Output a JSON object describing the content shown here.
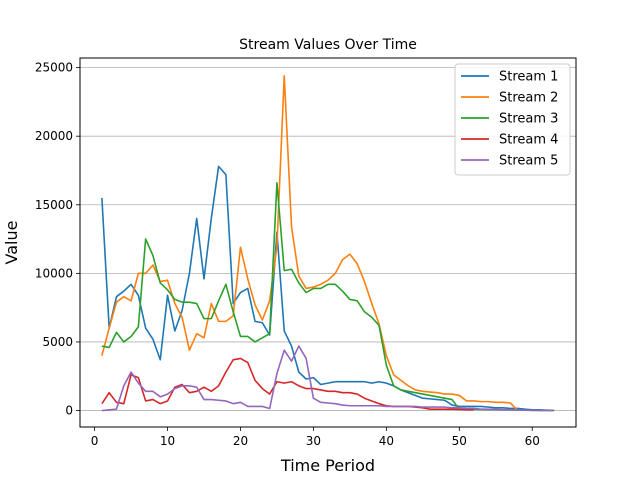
{
  "chart_data": {
    "type": "line",
    "title": "Stream Values Over Time",
    "xlabel": "Time Period",
    "ylabel": "Value",
    "xlim": [
      -2,
      66
    ],
    "ylim": [
      -1200,
      25700
    ],
    "xticks": [
      0,
      10,
      20,
      30,
      40,
      50,
      60
    ],
    "yticks": [
      0,
      5000,
      10000,
      15000,
      20000,
      25000
    ],
    "grid": "horizontal",
    "legend_position": "top-right",
    "series": [
      {
        "name": "Stream 1",
        "color": "#1f77b4",
        "points": [
          [
            1,
            15500
          ],
          [
            2,
            6000
          ],
          [
            3,
            8300
          ],
          [
            4,
            8700
          ],
          [
            5,
            9200
          ],
          [
            6,
            8400
          ],
          [
            7,
            6000
          ],
          [
            8,
            5200
          ],
          [
            9,
            3700
          ],
          [
            10,
            8400
          ],
          [
            11,
            5800
          ],
          [
            12,
            7300
          ],
          [
            13,
            10000
          ],
          [
            14,
            14000
          ],
          [
            15,
            9600
          ],
          [
            16,
            14000
          ],
          [
            17,
            17800
          ],
          [
            18,
            17200
          ],
          [
            19,
            7800
          ],
          [
            20,
            8600
          ],
          [
            21,
            8900
          ],
          [
            22,
            6500
          ],
          [
            23,
            6400
          ],
          [
            24,
            5500
          ],
          [
            25,
            13000
          ],
          [
            26,
            5800
          ],
          [
            27,
            4700
          ],
          [
            28,
            2800
          ],
          [
            29,
            2300
          ],
          [
            30,
            2400
          ],
          [
            31,
            1900
          ],
          [
            32,
            2000
          ],
          [
            33,
            2100
          ],
          [
            34,
            2100
          ],
          [
            35,
            2100
          ],
          [
            36,
            2100
          ],
          [
            37,
            2100
          ],
          [
            38,
            2000
          ],
          [
            39,
            2100
          ],
          [
            40,
            2000
          ],
          [
            41,
            1800
          ],
          [
            42,
            1500
          ],
          [
            43,
            1300
          ],
          [
            44,
            1100
          ],
          [
            45,
            900
          ],
          [
            46,
            850
          ],
          [
            47,
            800
          ],
          [
            48,
            750
          ],
          [
            49,
            400
          ],
          [
            50,
            300
          ],
          [
            51,
            300
          ],
          [
            52,
            300
          ],
          [
            53,
            300
          ],
          [
            54,
            250
          ],
          [
            55,
            200
          ],
          [
            56,
            200
          ],
          [
            57,
            150
          ],
          [
            58,
            150
          ],
          [
            59,
            100
          ],
          [
            60,
            50
          ],
          [
            61,
            50
          ],
          [
            62,
            30
          ],
          [
            63,
            20
          ]
        ]
      },
      {
        "name": "Stream 2",
        "color": "#ff7f0e",
        "points": [
          [
            1,
            4000
          ],
          [
            2,
            6000
          ],
          [
            3,
            7900
          ],
          [
            4,
            8300
          ],
          [
            5,
            8000
          ],
          [
            6,
            10000
          ],
          [
            7,
            10000
          ],
          [
            8,
            10600
          ],
          [
            9,
            9400
          ],
          [
            10,
            9500
          ],
          [
            11,
            7800
          ],
          [
            12,
            6800
          ],
          [
            13,
            4400
          ],
          [
            14,
            5600
          ],
          [
            15,
            5300
          ],
          [
            16,
            7800
          ],
          [
            17,
            6500
          ],
          [
            18,
            6500
          ],
          [
            19,
            6900
          ],
          [
            20,
            11900
          ],
          [
            21,
            9600
          ],
          [
            22,
            7700
          ],
          [
            23,
            6600
          ],
          [
            24,
            8000
          ],
          [
            25,
            12000
          ],
          [
            26,
            24400
          ],
          [
            27,
            13400
          ],
          [
            28,
            9800
          ],
          [
            29,
            8900
          ],
          [
            30,
            9000
          ],
          [
            31,
            9200
          ],
          [
            32,
            9500
          ],
          [
            33,
            10000
          ],
          [
            34,
            11000
          ],
          [
            35,
            11400
          ],
          [
            36,
            10700
          ],
          [
            37,
            9400
          ],
          [
            38,
            7800
          ],
          [
            39,
            6300
          ],
          [
            40,
            4000
          ],
          [
            41,
            2600
          ],
          [
            42,
            2200
          ],
          [
            43,
            1800
          ],
          [
            44,
            1500
          ],
          [
            45,
            1400
          ],
          [
            46,
            1350
          ],
          [
            47,
            1300
          ],
          [
            48,
            1200
          ],
          [
            49,
            1200
          ],
          [
            50,
            1100
          ],
          [
            51,
            700
          ],
          [
            52,
            700
          ],
          [
            53,
            650
          ],
          [
            54,
            650
          ],
          [
            55,
            600
          ],
          [
            56,
            600
          ],
          [
            57,
            550
          ],
          [
            58,
            0
          ]
        ]
      },
      {
        "name": "Stream 3",
        "color": "#2ca02c",
        "points": [
          [
            1,
            4700
          ],
          [
            2,
            4600
          ],
          [
            3,
            5700
          ],
          [
            4,
            5000
          ],
          [
            5,
            5400
          ],
          [
            6,
            6100
          ],
          [
            7,
            12500
          ],
          [
            8,
            11300
          ],
          [
            9,
            9300
          ],
          [
            10,
            8800
          ],
          [
            11,
            8100
          ],
          [
            12,
            7900
          ],
          [
            13,
            7900
          ],
          [
            14,
            7800
          ],
          [
            15,
            6700
          ],
          [
            16,
            6700
          ],
          [
            17,
            8000
          ],
          [
            18,
            9200
          ],
          [
            19,
            7200
          ],
          [
            20,
            5400
          ],
          [
            21,
            5400
          ],
          [
            22,
            5000
          ],
          [
            23,
            5300
          ],
          [
            24,
            5600
          ],
          [
            25,
            16600
          ],
          [
            26,
            10200
          ],
          [
            27,
            10300
          ],
          [
            28,
            9300
          ],
          [
            29,
            8600
          ],
          [
            30,
            8900
          ],
          [
            31,
            8900
          ],
          [
            32,
            9200
          ],
          [
            33,
            9200
          ],
          [
            34,
            8700
          ],
          [
            35,
            8100
          ],
          [
            36,
            8000
          ],
          [
            37,
            7200
          ],
          [
            38,
            6800
          ],
          [
            39,
            6200
          ],
          [
            40,
            3300
          ],
          [
            41,
            1800
          ],
          [
            42,
            1500
          ],
          [
            43,
            1400
          ],
          [
            44,
            1300
          ],
          [
            45,
            1200
          ],
          [
            46,
            1100
          ],
          [
            47,
            1000
          ],
          [
            48,
            900
          ],
          [
            49,
            800
          ],
          [
            50,
            100
          ],
          [
            51,
            100
          ],
          [
            52,
            100
          ],
          [
            53,
            80
          ],
          [
            54,
            70
          ],
          [
            55,
            60
          ],
          [
            56,
            50
          ],
          [
            57,
            40
          ],
          [
            58,
            30
          ],
          [
            59,
            20
          ],
          [
            60,
            10
          ],
          [
            61,
            10
          ],
          [
            62,
            10
          ],
          [
            63,
            10
          ]
        ]
      },
      {
        "name": "Stream 4",
        "color": "#d62728",
        "points": [
          [
            1,
            500
          ],
          [
            2,
            1300
          ],
          [
            3,
            600
          ],
          [
            4,
            500
          ],
          [
            5,
            2600
          ],
          [
            6,
            2400
          ],
          [
            7,
            700
          ],
          [
            8,
            800
          ],
          [
            9,
            500
          ],
          [
            10,
            700
          ],
          [
            11,
            1700
          ],
          [
            12,
            1900
          ],
          [
            13,
            1300
          ],
          [
            14,
            1400
          ],
          [
            15,
            1700
          ],
          [
            16,
            1400
          ],
          [
            17,
            1800
          ],
          [
            18,
            2800
          ],
          [
            19,
            3700
          ],
          [
            20,
            3800
          ],
          [
            21,
            3500
          ],
          [
            22,
            2200
          ],
          [
            23,
            1600
          ],
          [
            24,
            1200
          ],
          [
            25,
            2100
          ],
          [
            26,
            2000
          ],
          [
            27,
            2100
          ],
          [
            28,
            1800
          ],
          [
            29,
            1600
          ],
          [
            30,
            1600
          ],
          [
            31,
            1500
          ],
          [
            32,
            1400
          ],
          [
            33,
            1400
          ],
          [
            34,
            1300
          ],
          [
            35,
            1300
          ],
          [
            36,
            1200
          ],
          [
            37,
            900
          ],
          [
            38,
            700
          ],
          [
            39,
            500
          ],
          [
            40,
            350
          ],
          [
            41,
            300
          ],
          [
            42,
            300
          ],
          [
            43,
            300
          ],
          [
            44,
            250
          ],
          [
            45,
            200
          ],
          [
            46,
            100
          ],
          [
            47,
            100
          ],
          [
            48,
            100
          ],
          [
            49,
            100
          ],
          [
            50,
            80
          ],
          [
            51,
            60
          ],
          [
            52,
            50
          ]
        ]
      },
      {
        "name": "Stream 5",
        "color": "#9467bd",
        "points": [
          [
            1,
            0
          ],
          [
            2,
            50
          ],
          [
            3,
            100
          ],
          [
            4,
            1800
          ],
          [
            5,
            2800
          ],
          [
            6,
            2000
          ],
          [
            7,
            1400
          ],
          [
            8,
            1400
          ],
          [
            9,
            1000
          ],
          [
            10,
            1200
          ],
          [
            11,
            1600
          ],
          [
            12,
            1800
          ],
          [
            13,
            1800
          ],
          [
            14,
            1700
          ],
          [
            15,
            800
          ],
          [
            16,
            800
          ],
          [
            17,
            750
          ],
          [
            18,
            700
          ],
          [
            19,
            500
          ],
          [
            20,
            600
          ],
          [
            21,
            300
          ],
          [
            22,
            300
          ],
          [
            23,
            300
          ],
          [
            24,
            150
          ],
          [
            25,
            2700
          ],
          [
            26,
            4400
          ],
          [
            27,
            3600
          ],
          [
            28,
            4700
          ],
          [
            29,
            3800
          ],
          [
            30,
            900
          ],
          [
            31,
            600
          ],
          [
            32,
            550
          ],
          [
            33,
            500
          ],
          [
            34,
            400
          ],
          [
            35,
            350
          ],
          [
            36,
            350
          ],
          [
            37,
            350
          ],
          [
            38,
            350
          ],
          [
            39,
            350
          ],
          [
            40,
            300
          ],
          [
            41,
            300
          ],
          [
            42,
            300
          ],
          [
            43,
            300
          ],
          [
            44,
            300
          ],
          [
            45,
            250
          ],
          [
            46,
            250
          ],
          [
            47,
            250
          ],
          [
            48,
            250
          ],
          [
            49,
            200
          ],
          [
            50,
            200
          ],
          [
            51,
            150
          ],
          [
            52,
            150
          ],
          [
            53,
            100
          ],
          [
            54,
            100
          ],
          [
            55,
            80
          ],
          [
            56,
            60
          ],
          [
            57,
            50
          ],
          [
            58,
            40
          ],
          [
            59,
            30
          ],
          [
            60,
            20
          ],
          [
            61,
            10
          ],
          [
            62,
            10
          ],
          [
            63,
            10
          ]
        ]
      }
    ]
  }
}
